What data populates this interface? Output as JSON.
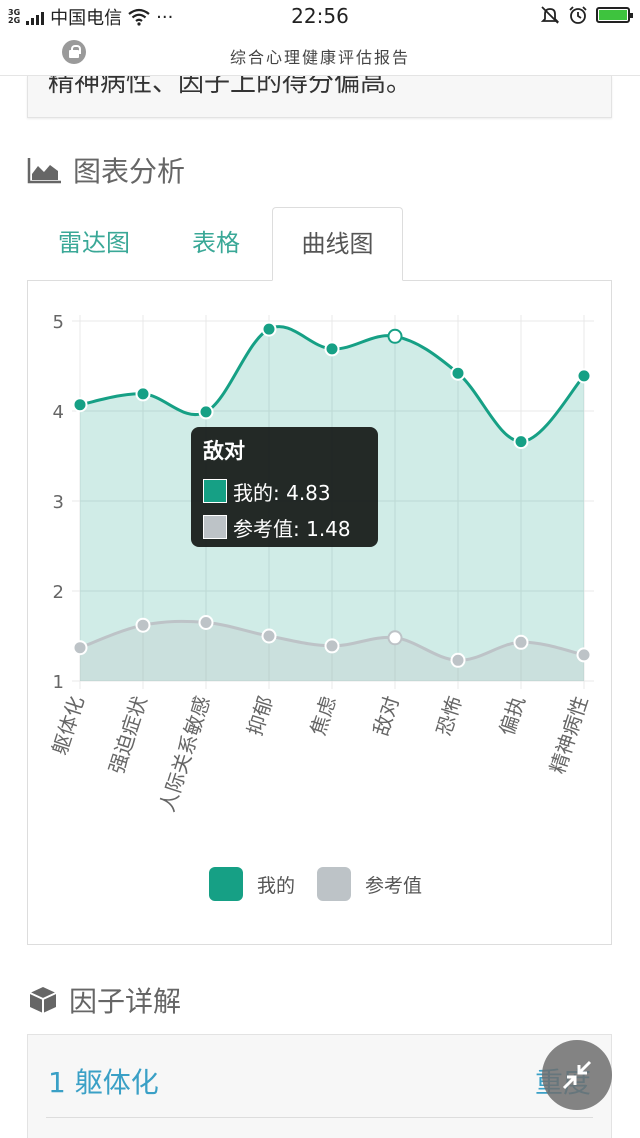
{
  "status_bar": {
    "network": "3G\n2G",
    "carrier": "中国电信",
    "more": "···",
    "time": "22:56"
  },
  "titlebar": {
    "title": "综合心理健康评估报告"
  },
  "top_card": {
    "text": "精神病性、因子上的得分偏高。"
  },
  "section_chart": {
    "title": "图表分析"
  },
  "tabs": [
    {
      "label": "雷达图",
      "active": false
    },
    {
      "label": "表格",
      "active": false
    },
    {
      "label": "曲线图",
      "active": true
    }
  ],
  "tooltip": {
    "title": "敌对",
    "rows": [
      {
        "label": "我的: 4.83",
        "color": "#16a085"
      },
      {
        "label": "参考值: 1.48",
        "color": "#bdc3c7"
      }
    ]
  },
  "legend": [
    {
      "label": "我的",
      "color": "#16a085"
    },
    {
      "label": "参考值",
      "color": "#bdc3c7"
    }
  ],
  "section_factor": {
    "title": "因子详解"
  },
  "factor_card": {
    "title": "1 躯体化",
    "link": "重度"
  },
  "chart_data": {
    "type": "area",
    "categories": [
      "躯体化",
      "强迫症状",
      "人际关系敏感",
      "抑郁",
      "焦虑",
      "敌对",
      "恐怖",
      "偏执",
      "精神病性"
    ],
    "series": [
      {
        "name": "我的",
        "color": "#16a085",
        "values": [
          4.07,
          4.19,
          3.99,
          4.91,
          4.69,
          4.83,
          4.42,
          3.66,
          4.39
        ]
      },
      {
        "name": "参考值",
        "color": "#bdc3c7",
        "values": [
          1.37,
          1.62,
          1.65,
          1.5,
          1.39,
          1.48,
          1.23,
          1.43,
          1.29
        ]
      }
    ],
    "yticks": [
      "1",
      "2",
      "3",
      "4",
      "5"
    ],
    "ylim": [
      1,
      5
    ],
    "grid": true,
    "legend_position": "bottom",
    "highlight_index": 5
  }
}
